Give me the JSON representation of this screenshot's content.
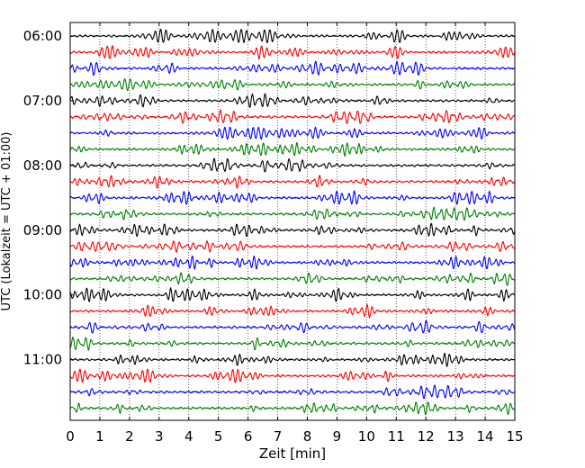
{
  "chart_data": {
    "type": "line",
    "title": "",
    "xlabel": "Zeit  [min]",
    "ylabel": "UTC (Lokalzeit = UTC + 01:00)",
    "xlim": [
      0,
      15
    ],
    "x_ticks": [
      "0",
      "1",
      "2",
      "3",
      "4",
      "5",
      "6",
      "7",
      "8",
      "9",
      "10",
      "11",
      "12",
      "13",
      "14",
      "15"
    ],
    "y_ticks": [
      "06:00",
      "07:00",
      "08:00",
      "09:00",
      "10:00",
      "11:00"
    ],
    "grid": "vertical dotted",
    "trace_interval_minutes": 15,
    "traces_start": "06:00",
    "traces_end": "11:45",
    "colors": [
      "#000000",
      "#ff0000",
      "#0000ff",
      "#008000"
    ]
  }
}
